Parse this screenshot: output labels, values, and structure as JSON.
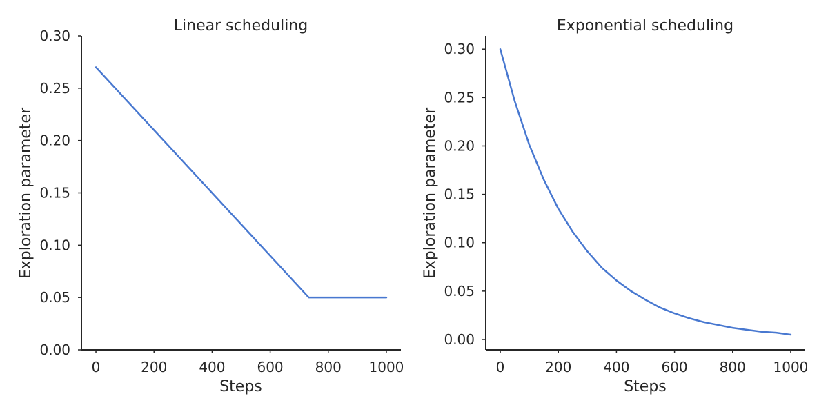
{
  "chart_data": [
    {
      "type": "line",
      "title": "Linear scheduling",
      "xlabel": "Steps",
      "ylabel": "Exploration parameter",
      "xlim": [
        -50,
        1050
      ],
      "ylim": [
        0.0,
        0.3
      ],
      "xticks": [
        0,
        200,
        400,
        600,
        800,
        1000
      ],
      "xtick_labels": [
        "0",
        "200",
        "400",
        "600",
        "800",
        "1000"
      ],
      "yticks": [
        0.0,
        0.05,
        0.1,
        0.15,
        0.2,
        0.25,
        0.3
      ],
      "ytick_labels": [
        "0.00",
        "0.05",
        "0.10",
        "0.15",
        "0.20",
        "0.25",
        "0.30"
      ],
      "grid": false,
      "series": [
        {
          "color": "#4878d0",
          "x": [
            0,
            733,
            1000
          ],
          "y": [
            0.27,
            0.05,
            0.05
          ]
        }
      ]
    },
    {
      "type": "line",
      "title": "Exponential scheduling",
      "xlabel": "Steps",
      "ylabel": "Exploration parameter",
      "xlim": [
        -50,
        1050
      ],
      "ylim": [
        -0.0107,
        0.3137
      ],
      "xticks": [
        0,
        200,
        400,
        600,
        800,
        1000
      ],
      "xtick_labels": [
        "0",
        "200",
        "400",
        "600",
        "800",
        "1000"
      ],
      "yticks": [
        0.0,
        0.05,
        0.1,
        0.15,
        0.2,
        0.25,
        0.3
      ],
      "ytick_labels": [
        "0.00",
        "0.05",
        "0.10",
        "0.15",
        "0.20",
        "0.25",
        "0.30"
      ],
      "grid": false,
      "series": [
        {
          "color": "#4878d0",
          "x": [
            0,
            50,
            100,
            150,
            200,
            250,
            300,
            350,
            400,
            450,
            500,
            550,
            600,
            650,
            700,
            750,
            800,
            850,
            900,
            950,
            1000
          ],
          "y": [
            0.3,
            0.246,
            0.201,
            0.165,
            0.135,
            0.111,
            0.091,
            0.074,
            0.061,
            0.05,
            0.041,
            0.033,
            0.027,
            0.022,
            0.018,
            0.015,
            0.012,
            0.01,
            0.008,
            0.007,
            0.005
          ]
        }
      ]
    }
  ]
}
